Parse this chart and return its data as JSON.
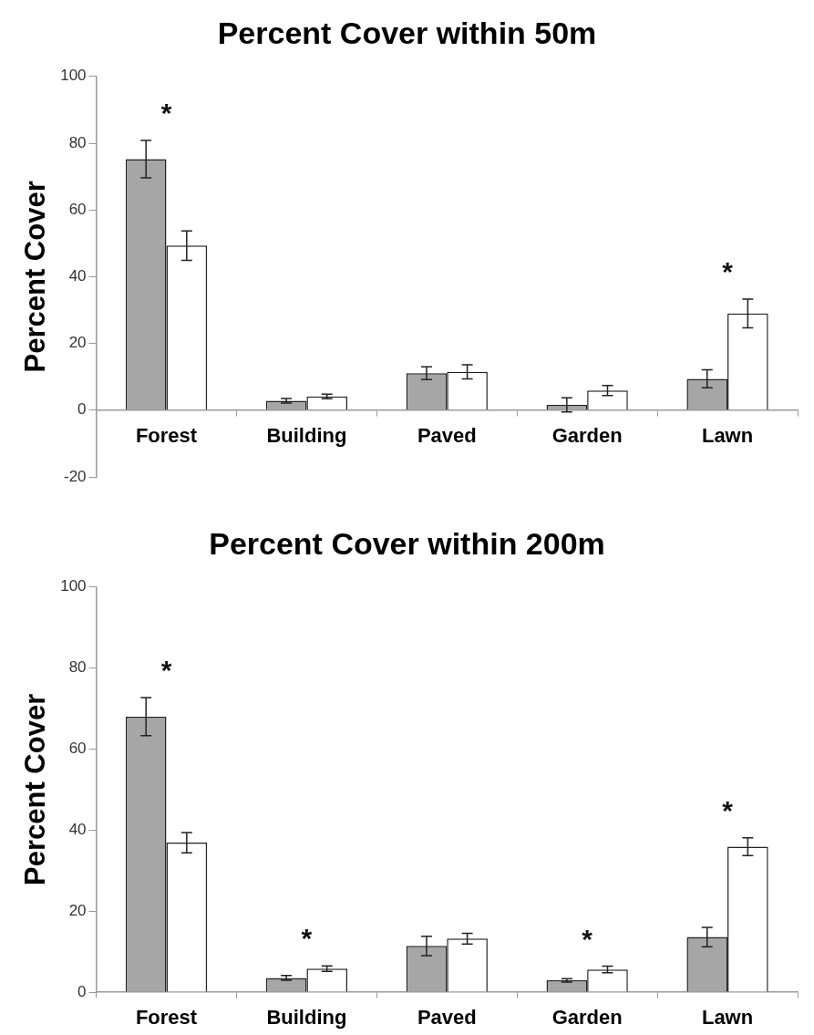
{
  "chart_data": [
    {
      "type": "bar",
      "title": "Percent Cover within 50m",
      "ylabel": "Percent Cover",
      "categories": [
        "Forest",
        "Building",
        "Paved",
        "Garden",
        "Lawn"
      ],
      "series": [
        {
          "color": "#a6a6a6",
          "values": [
            75.2,
            2.8,
            11.1,
            1.6,
            9.4
          ],
          "errors": [
            5.6,
            0.7,
            1.9,
            2.1,
            2.7
          ]
        },
        {
          "color": "#ffffff",
          "values": [
            49.3,
            4.1,
            11.5,
            5.9,
            29.0
          ],
          "errors": [
            4.4,
            0.7,
            2.1,
            1.5,
            4.3
          ]
        }
      ],
      "ylim": [
        -20,
        100
      ],
      "yticks": [
        -20,
        0,
        20,
        40,
        60,
        80,
        100
      ],
      "grid": false,
      "legend": false,
      "annotations": [
        {
          "text": "*",
          "x": "Forest",
          "y": 75.2
        },
        {
          "text": "*",
          "x": "Lawn",
          "y": 29.0
        }
      ]
    },
    {
      "type": "bar",
      "title": "Percent Cover within 200m",
      "ylabel": "Percent Cover",
      "categories": [
        "Forest",
        "Building",
        "Paved",
        "Garden",
        "Lawn"
      ],
      "series": [
        {
          "color": "#a6a6a6",
          "values": [
            68.0,
            3.5,
            11.4,
            2.9,
            13.6
          ],
          "errors": [
            4.7,
            0.6,
            2.4,
            0.4,
            2.4
          ]
        },
        {
          "color": "#ffffff",
          "values": [
            36.9,
            5.8,
            13.2,
            5.6,
            35.9
          ],
          "errors": [
            2.5,
            0.7,
            1.3,
            0.8,
            2.2
          ]
        }
      ],
      "ylim": [
        0,
        100
      ],
      "yticks": [
        0,
        20,
        40,
        60,
        80,
        100
      ],
      "grid": false,
      "legend": false,
      "annotations": [
        {
          "text": "*",
          "x": "Forest",
          "y": 68.0
        },
        {
          "text": "*",
          "x": "Building",
          "y": 5.8
        },
        {
          "text": "*",
          "x": "Garden",
          "y": 5.6
        },
        {
          "text": "*",
          "x": "Lawn",
          "y": 35.9
        }
      ]
    }
  ]
}
